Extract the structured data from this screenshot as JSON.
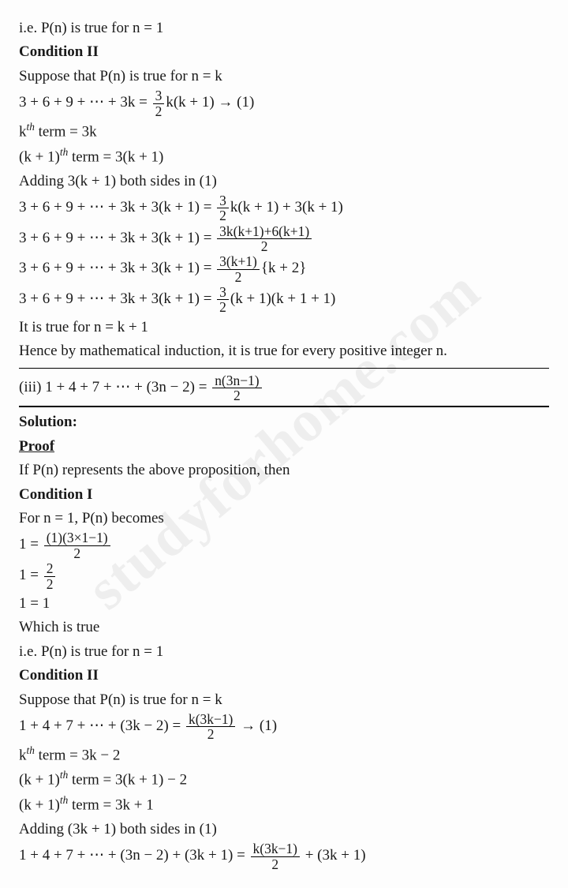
{
  "p1": "i.e. P(n) is true for n = 1",
  "c2hdr": "Condition II",
  "p2": "Suppose that P(n) is true for n = k",
  "eq1_lhs": "3 + 6 + 9 + ⋯ + 3k = ",
  "eq1_num": "3",
  "eq1_den": "2",
  "eq1_rhs": "k(k + 1) → (1)",
  "kterm_pre": "k",
  "kterm_sup": "th",
  "kterm_post": " term = 3k",
  "kp1_pre": "(k + 1)",
  "kp1_sup": "th",
  "kp1_post": " term = 3(k + 1)",
  "adding1": "Adding 3(k + 1) both sides in (1)",
  "eq2_lhs": "3 + 6 + 9 + ⋯ + 3k + 3(k + 1) = ",
  "eq2_num": "3",
  "eq2_den": "2",
  "eq2_rhs": "k(k + 1) + 3(k + 1)",
  "eq3_lhs": "3 + 6 + 9 + ⋯ + 3k + 3(k + 1) = ",
  "eq3_num": "3k(k+1)+6(k+1)",
  "eq3_den": "2",
  "eq4_lhs": "3 + 6 + 9 + ⋯ + 3k + 3(k + 1) = ",
  "eq4_num": "3(k+1)",
  "eq4_den": "2",
  "eq4_rhs": "{k + 2}",
  "eq5_lhs": "3 + 6 + 9 + ⋯ + 3k + 3(k + 1) = ",
  "eq5_num": "3",
  "eq5_den": "2",
  "eq5_rhs": "(k + 1)(k + 1 + 1)",
  "true_kp1": "It is true for n = k + 1",
  "hence": "Hence by mathematical induction, it is true for every positive integer n.",
  "iii_lhs": "(iii) 1 + 4 + 7 + ⋯ + (3n − 2) = ",
  "iii_num": "n(3n−1)",
  "iii_den": "2",
  "sol": "Solution:",
  "proof": "Proof",
  "ifpn": "If P(n) represents the above proposition, then",
  "c1hdr": "Condition I",
  "forN1": "For n = 1, P(n) becomes",
  "one_eq": "1 = ",
  "c1_num1": "(1)(3×1−1)",
  "c1_den1": "2",
  "c1_num2": "2",
  "c1_den2": "2",
  "one_one": "1 = 1",
  "which": "Which is true",
  "pn_true": "i.e. P(n) is true for n = 1",
  "c2hdr2": "Condition II",
  "suppose2": "Suppose that P(n) is true for n = k",
  "eqb1_lhs": "1 + 4 + 7 + ⋯ + (3k − 2) = ",
  "eqb1_num": "k(3k−1)",
  "eqb1_den": "2",
  "eqb1_rhs": " → (1)",
  "ktermb_pre": "k",
  "ktermb_sup": "th",
  "ktermb_post": " term = 3k − 2",
  "kp1b_pre": "(k + 1)",
  "kp1b_sup": "th",
  "kp1b_post": " term = 3(k + 1) − 2",
  "kp1c_pre": "(k + 1)",
  "kp1c_sup": "th",
  "kp1c_post": " term = 3k + 1",
  "adding2": "Adding (3k + 1) both sides in  (1)",
  "eqb2_lhs": "1 + 4 + 7 + ⋯ + (3n − 2) + (3k + 1) = ",
  "eqb2_num": "k(3k−1)",
  "eqb2_den": "2",
  "eqb2_rhs": " + (3k + 1)",
  "watermark": "studyforhome.com"
}
